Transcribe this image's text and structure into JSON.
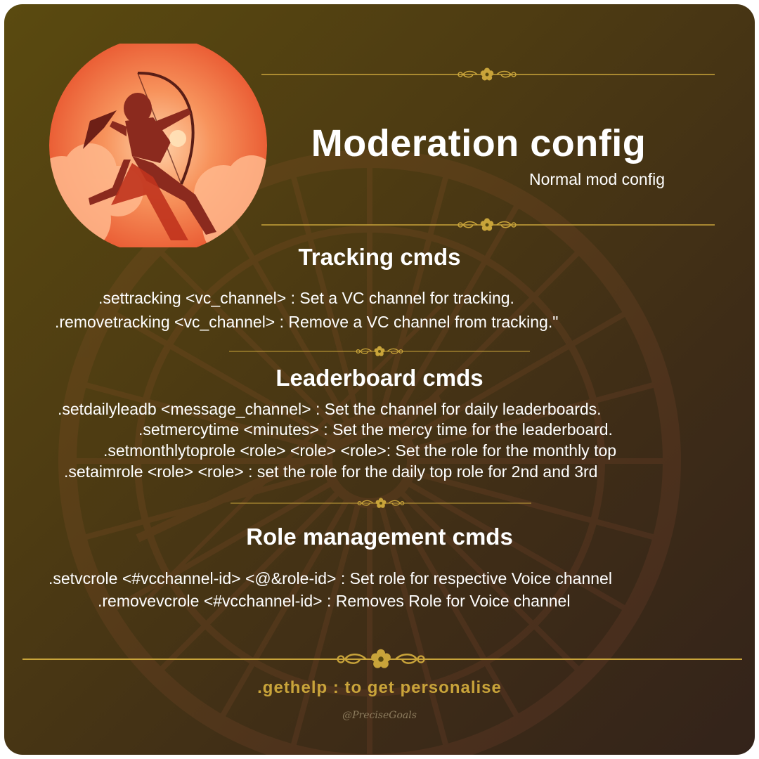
{
  "header": {
    "title": "Moderation config",
    "subtitle": "Normal mod config"
  },
  "sections": [
    {
      "heading": "Tracking cmds",
      "commands": [
        ".settracking <vc_channel> : Set a VC channel for tracking.",
        ".removetracking <vc_channel> : Remove a VC channel from tracking.\""
      ]
    },
    {
      "heading": "Leaderboard cmds",
      "commands": [
        ".setdailyleadb <message_channel> : Set the channel for daily leaderboards.",
        ".setmercytime <minutes> : Set the mercy time for the leaderboard.",
        ".setmonthlytoprole <role> <role> <role>: Set the role for the monthly top",
        ".setaimrole <role> <role> : set the role for the daily top role for 2nd and 3rd"
      ]
    },
    {
      "heading": "Role management cmds",
      "commands": [
        ".setvcrole <#vcchannel-id> <@&role-id> : Set role for respective Voice channel",
        ".removevcrole <#vcchannel-id> : Removes Role for Voice channel"
      ]
    }
  ],
  "footer": {
    "text": ".gethelp : to get personalise",
    "signature": "@PreciseGoals"
  },
  "icons": {
    "avatar": "archer-illustration",
    "divider": "flower-ornament-icon",
    "background": "wheel-watermark"
  },
  "colors": {
    "background_top": "#5a4a10",
    "background_bottom": "#33231a",
    "accent_gold": "#c9a43a",
    "text": "#ffffff",
    "sun_orange": "#f0804a"
  }
}
